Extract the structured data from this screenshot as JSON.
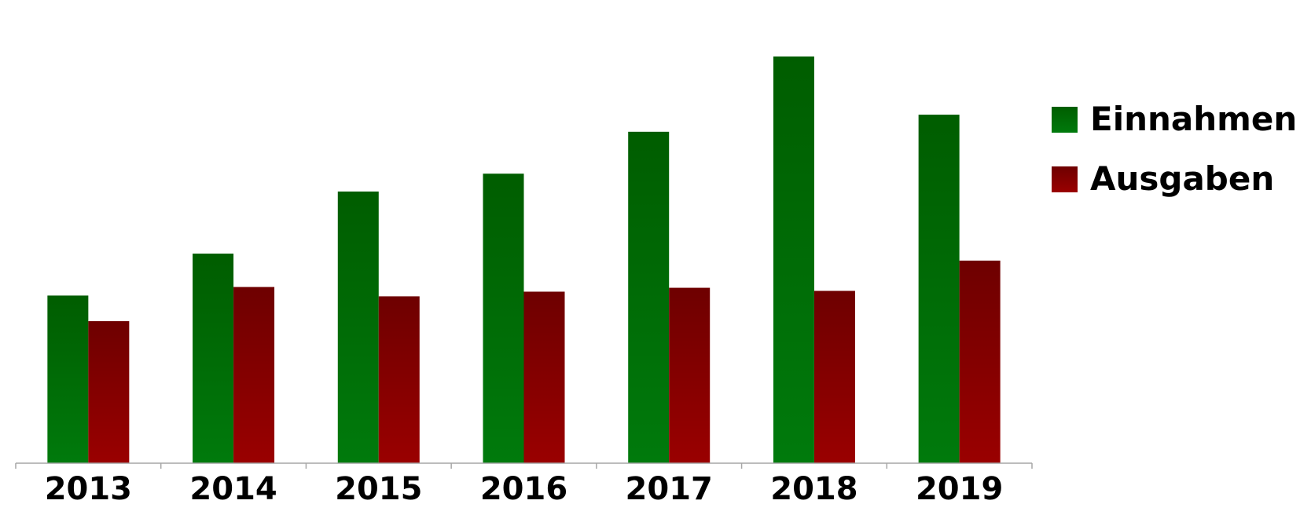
{
  "chart_data": {
    "type": "bar",
    "categories": [
      "2013",
      "2014",
      "2015",
      "2016",
      "2017",
      "2018",
      "2019"
    ],
    "series": [
      {
        "name": "Einnahmen",
        "values": [
          216,
          270,
          350,
          373,
          427,
          524,
          449
        ],
        "color": "#00750a"
      },
      {
        "name": "Ausgaben",
        "values": [
          183,
          227,
          215,
          221,
          226,
          222,
          261
        ],
        "color": "#8b0000"
      }
    ],
    "title": "",
    "xlabel": "",
    "ylabel": "",
    "ylim": [
      0,
      530
    ],
    "grid": false,
    "legend": "right"
  }
}
